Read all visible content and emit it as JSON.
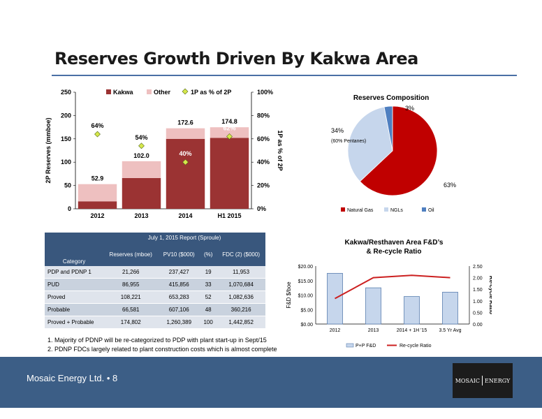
{
  "title": "Reserves Growth Driven By Kakwa Area",
  "footer": "Mosaic Energy Ltd. • 8",
  "logo": {
    "left": "MOSAIC",
    "right": "ENERGY"
  },
  "colors": {
    "kakwa": "#9b3333",
    "other": "#eec0c0",
    "marker": "#d6e84a",
    "natgas": "#c00000",
    "ngls": "#c6d6ec",
    "oil": "#4f7fc0",
    "fd_bar": "#c6d6ec",
    "recycle": "#cc2020",
    "header": "#39577d"
  },
  "chart_data": [
    {
      "type": "bar",
      "stacked": true,
      "categories": [
        "2012",
        "2013",
        "2014",
        "H1 2015"
      ],
      "series": [
        {
          "name": "Kakwa",
          "values": [
            16,
            66,
            150,
            152
          ]
        },
        {
          "name": "Other",
          "values": [
            36.9,
            36.0,
            22.6,
            22.8
          ]
        }
      ],
      "totals": [
        52.9,
        102.0,
        172.6,
        174.8
      ],
      "total_labels": [
        "52.9",
        "102.0",
        "172.6",
        "174.8"
      ],
      "line_series": {
        "name": "1P as % of 2P",
        "values": [
          64,
          54,
          40,
          62
        ],
        "labels": [
          "64%",
          "54%",
          "40%",
          "62%"
        ]
      },
      "ylabel": "2P Reserves (mmboe)",
      "y2label": "1P as % of 2P",
      "ylim": [
        0,
        250
      ],
      "y2lim": [
        0,
        100
      ],
      "yticks": [
        "0",
        "50",
        "100",
        "150",
        "200",
        "250"
      ],
      "y2ticks": [
        "0%",
        "20%",
        "40%",
        "60%",
        "80%",
        "100%"
      ],
      "legend": "top"
    },
    {
      "type": "pie",
      "title": "Reserves Composition",
      "labels": [
        "Natural Gas",
        "NGLs",
        "Oil"
      ],
      "values": [
        63,
        34,
        3
      ],
      "value_labels": [
        "63%",
        "34%",
        "3%"
      ],
      "ngl_note": "(60% Pentanes)",
      "legend": "bottom"
    },
    {
      "type": "bar",
      "title": "Kakwa/Resthaven Area F&D’s",
      "subtitle": "& Re-cycle Ratio",
      "categories": [
        "2012",
        "2013",
        "2014 + 1H '15",
        "3.5 Yr Avg"
      ],
      "series": [
        {
          "name": "P+P F&D",
          "values": [
            17.5,
            12.5,
            9.5,
            11
          ]
        }
      ],
      "line_series": {
        "name": "Re-cycle Ratio",
        "values": [
          1.1,
          2.0,
          2.1,
          2.0
        ]
      },
      "ylabel": "F&D $/boe",
      "y2label": "Re-cycle Ratio",
      "ylim": [
        0,
        20
      ],
      "y2lim": [
        0,
        2.5
      ],
      "yticks": [
        "$0.00",
        "$5.00",
        "$10.00",
        "$15.00",
        "$20.00"
      ],
      "y2ticks": [
        "0.00",
        "0.50",
        "1.00",
        "1.50",
        "2.00",
        "2.50"
      ],
      "legend": "bottom"
    }
  ],
  "table": {
    "report_title": "July 1, 2015 Report (Sproule)",
    "headers": [
      "Category",
      "Reserves (mboe)",
      "PV10 ($000)",
      "(%)",
      "FDC (2) ($000)"
    ],
    "rows": [
      [
        "PDP and PDNP 1",
        "21,266",
        "237,427",
        "19",
        "11,953"
      ],
      [
        "PUD",
        "86,955",
        "415,856",
        "33",
        "1,070,684"
      ],
      [
        "Proved",
        "108,221",
        "653,283",
        "52",
        "1,082,636"
      ],
      [
        "Probable",
        "66,581",
        "607,106",
        "48",
        "360,216"
      ],
      [
        "Proved + Probable",
        "174,802",
        "1,260,389",
        "100",
        "1,442,852"
      ]
    ]
  },
  "notes": [
    "Majority of PDNP will be re-categorized to PDP with plant start-up in Sept/15",
    "PDNP FDCs largely related to plant construction costs which is almost complete"
  ]
}
